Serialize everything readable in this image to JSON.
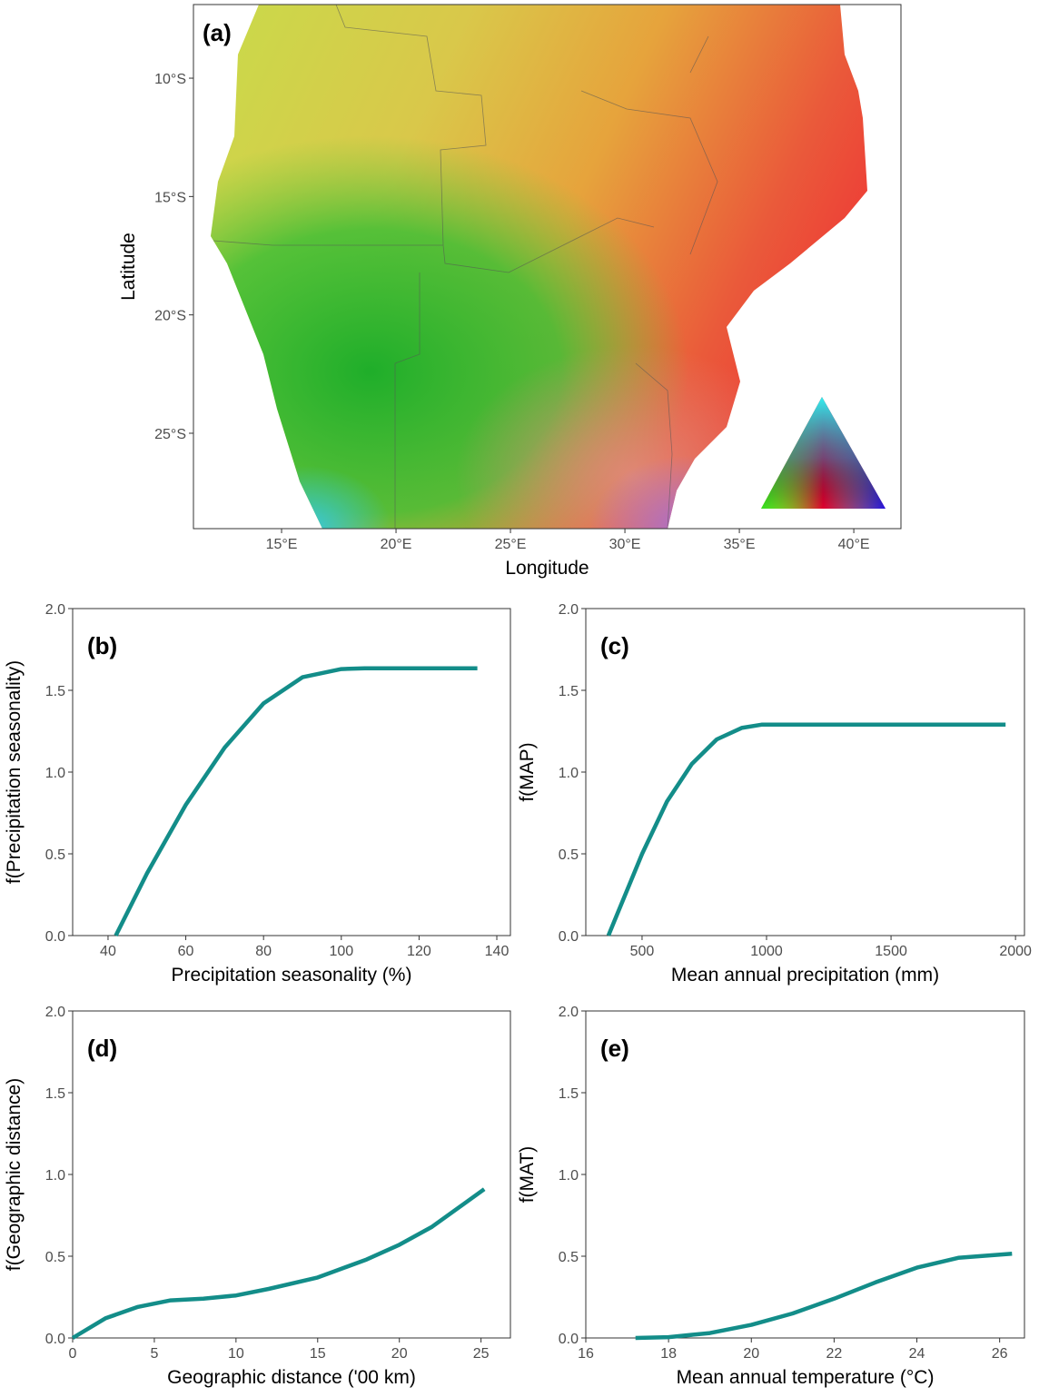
{
  "chart_data": [
    {
      "type": "map",
      "title": "(a)",
      "x_label": "Longitude",
      "y_label": "Latitude",
      "xlim": [
        11.15,
        42.06
      ],
      "ylim": [
        -29.03,
        -6.89
      ],
      "xticks": [
        {
          "value": 15,
          "label": "15°E"
        },
        {
          "value": 20,
          "label": "20°E"
        },
        {
          "value": 25,
          "label": "25°E"
        },
        {
          "value": 30,
          "label": "30°E"
        },
        {
          "value": 35,
          "label": "35°E"
        },
        {
          "value": 40,
          "label": "40°E"
        }
      ],
      "yticks": [
        {
          "value": -10,
          "label": "10°S"
        },
        {
          "value": -15,
          "label": "15°S"
        },
        {
          "value": -20,
          "label": "20°S"
        },
        {
          "value": -25,
          "label": "25°S"
        }
      ]
    },
    {
      "type": "line",
      "title": "(b)",
      "x_label": "Precipitation seasonality (%)",
      "y_label": "f(Precipitation seasonality)",
      "x": [
        42,
        50,
        60,
        70,
        80,
        90,
        100,
        106,
        120,
        135
      ],
      "values": [
        0,
        0.38,
        0.8,
        1.15,
        1.42,
        1.58,
        1.63,
        1.635,
        1.635,
        1.635
      ],
      "color": "#138d89",
      "xlim": [
        30.9,
        143.5
      ],
      "ylim": [
        0,
        2
      ],
      "xticks": [
        40,
        60,
        80,
        100,
        120,
        140
      ],
      "yticks": [
        {
          "value": 0,
          "label": "0.0"
        },
        {
          "value": 0.5,
          "label": "0.5"
        },
        {
          "value": 1,
          "label": "1.0"
        },
        {
          "value": 1.5,
          "label": "1.5"
        },
        {
          "value": 2,
          "label": "2.0"
        }
      ]
    },
    {
      "type": "line",
      "title": "(c)",
      "x_label": "Mean annual precipitation (mm)",
      "y_label": "f(MAP)",
      "x": [
        365,
        400,
        500,
        600,
        700,
        800,
        900,
        980,
        1500,
        1960
      ],
      "values": [
        0,
        0.13,
        0.5,
        0.82,
        1.05,
        1.2,
        1.27,
        1.29,
        1.29,
        1.29
      ],
      "color": "#138d89",
      "xlim": [
        274,
        2036
      ],
      "ylim": [
        0,
        2
      ],
      "xticks": [
        500,
        1000,
        1500,
        2000
      ],
      "yticks": [
        {
          "value": 0,
          "label": "0.0"
        },
        {
          "value": 0.5,
          "label": "0.5"
        },
        {
          "value": 1,
          "label": "1.0"
        },
        {
          "value": 1.5,
          "label": "1.5"
        },
        {
          "value": 2,
          "label": "2.0"
        }
      ]
    },
    {
      "type": "line",
      "title": "(d)",
      "x_label": "Geographic distance ('00 km)",
      "y_label": "f(Geographic distance)",
      "x": [
        0,
        2,
        4,
        6,
        8,
        10,
        12,
        15,
        18,
        20,
        22,
        25.2
      ],
      "values": [
        0,
        0.12,
        0.19,
        0.23,
        0.24,
        0.26,
        0.3,
        0.37,
        0.48,
        0.57,
        0.68,
        0.91
      ],
      "color": "#138d89",
      "xlim": [
        0,
        26.8
      ],
      "ylim": [
        0,
        2
      ],
      "xticks": [
        0,
        5,
        10,
        15,
        20,
        25
      ],
      "yticks": [
        {
          "value": 0,
          "label": "0.0"
        },
        {
          "value": 0.5,
          "label": "0.5"
        },
        {
          "value": 1,
          "label": "1.0"
        },
        {
          "value": 1.5,
          "label": "1.5"
        },
        {
          "value": 2,
          "label": "2.0"
        }
      ]
    },
    {
      "type": "line",
      "title": "(e)",
      "x_label": "Mean annual temperature (°C)",
      "y_label": "f(MAT)",
      "x": [
        17.2,
        18,
        19,
        20,
        21,
        22,
        23,
        24,
        25,
        26.3
      ],
      "values": [
        0,
        0.005,
        0.03,
        0.08,
        0.15,
        0.24,
        0.34,
        0.43,
        0.49,
        0.515
      ],
      "color": "#138d89",
      "xlim": [
        16,
        26.6
      ],
      "ylim": [
        0,
        2
      ],
      "xticks": [
        16,
        18,
        20,
        22,
        24,
        26
      ],
      "yticks": [
        {
          "value": 0,
          "label": "0.0"
        },
        {
          "value": 0.5,
          "label": "0.5"
        },
        {
          "value": 1,
          "label": "1.0"
        },
        {
          "value": 1.5,
          "label": "1.5"
        },
        {
          "value": 2,
          "label": "2.0"
        }
      ]
    }
  ]
}
